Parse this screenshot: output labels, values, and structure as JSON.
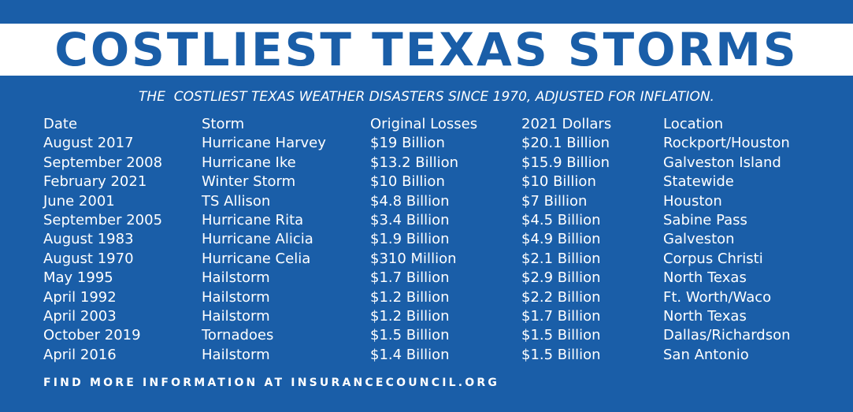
{
  "title": "COSTLIEST TEXAS STORMS",
  "subtitle": "THE  COSTLIEST TEXAS WEATHER DISASTERS SINCE 1970, ADJUSTED FOR INFLATION.",
  "columns": [
    "Date",
    "Storm",
    "Original Losses",
    "2021 Dollars",
    "Location"
  ],
  "rows": [
    [
      "August 2017",
      "Hurricane Harvey",
      "$19 Billion",
      "$20.1 Billion",
      "Rockport/Houston"
    ],
    [
      "September 2008",
      "Hurricane Ike",
      "$13.2 Billion",
      "$15.9 Billion",
      "Galveston Island"
    ],
    [
      "February 2021",
      "Winter Storm",
      "$10 Billion",
      "$10 Billion",
      "Statewide"
    ],
    [
      "June 2001",
      "TS Allison",
      "$4.8 Billion",
      "$7 Billion",
      "Houston"
    ],
    [
      "September 2005",
      "Hurricane Rita",
      "$3.4 Billion",
      "$4.5 Billion",
      "Sabine Pass"
    ],
    [
      "August 1983",
      "Hurricane Alicia",
      "$1.9 Billion",
      "$4.9 Billion",
      "Galveston"
    ],
    [
      "August 1970",
      "Hurricane Celia",
      "$310 Million",
      "$2.1 Billion",
      "Corpus Christi"
    ],
    [
      "May 1995",
      "Hailstorm",
      "$1.7 Billion",
      "$2.9 Billion",
      "North Texas"
    ],
    [
      "April 1992",
      "Hailstorm",
      "$1.2 Billion",
      "$2.2 Billion",
      "Ft. Worth/Waco"
    ],
    [
      "April 2003",
      "Hailstorm",
      "$1.2 Billion",
      "$1.7 Billion",
      "North Texas"
    ],
    [
      "October 2019",
      "Tornadoes",
      "$1.5 Billion",
      "$1.5 Billion",
      "Dallas/Richardson"
    ],
    [
      "April 2016",
      "Hailstorm",
      "$1.4 Billion",
      "$1.5 Billion",
      "San Antonio"
    ]
  ],
  "footer": "FIND MORE INFORMATION AT INSURANCECOUNCIL.ORG",
  "colors": {
    "background": "#1a5ea8",
    "title_band": "#ffffff",
    "title_text": "#1a5ea8",
    "body_text": "#ffffff"
  }
}
